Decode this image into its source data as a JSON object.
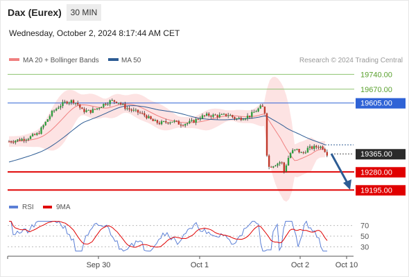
{
  "header": {
    "instrument": "Dax (Eurex)",
    "interval": "30 MIN",
    "datetime": "Wednesday, October 2, 2024 8:17:44 AM CET"
  },
  "chart_data": {
    "type": "candlestick",
    "price_panel": {
      "legend": [
        {
          "label": "MA 20 + Bollinger Bands",
          "color": "#f08080"
        },
        {
          "label": "MA 50",
          "color": "#2d5c94"
        }
      ],
      "credit": "Research © 2024 Trading Central",
      "y_range": [
        19170,
        19790
      ],
      "levels": [
        {
          "value": 19740.0,
          "label": "19740.00",
          "kind": "target",
          "color": "#8dc26f"
        },
        {
          "value": 19670.0,
          "label": "19670.00",
          "kind": "target",
          "color": "#8dc26f"
        },
        {
          "value": 19605.0,
          "label": "19605.00",
          "kind": "pivot",
          "color": "#2f63d6"
        },
        {
          "value": 19365.0,
          "label": "19365.00",
          "kind": "last",
          "color": "#333333"
        },
        {
          "value": 19280.0,
          "label": "19280.00",
          "kind": "support",
          "color": "#e00000"
        },
        {
          "value": 19195.0,
          "label": "19195.00",
          "kind": "support",
          "color": "#e00000"
        }
      ],
      "last_price": 19365.0,
      "forecast": {
        "direction": "down",
        "target": 19195.0
      }
    },
    "rsi_panel": {
      "legend": [
        {
          "label": "RSI",
          "color": "#5b7fd6"
        },
        {
          "label": "9MA",
          "color": "#e00000"
        }
      ],
      "y_range": [
        20,
        80
      ],
      "ticks": [
        "70",
        "50",
        "30"
      ],
      "tick_values": [
        70,
        50,
        30
      ]
    },
    "x_axis": {
      "labels": [
        "Sep 30",
        "Oct 1",
        "Oct 2",
        "Oct 10"
      ]
    }
  }
}
